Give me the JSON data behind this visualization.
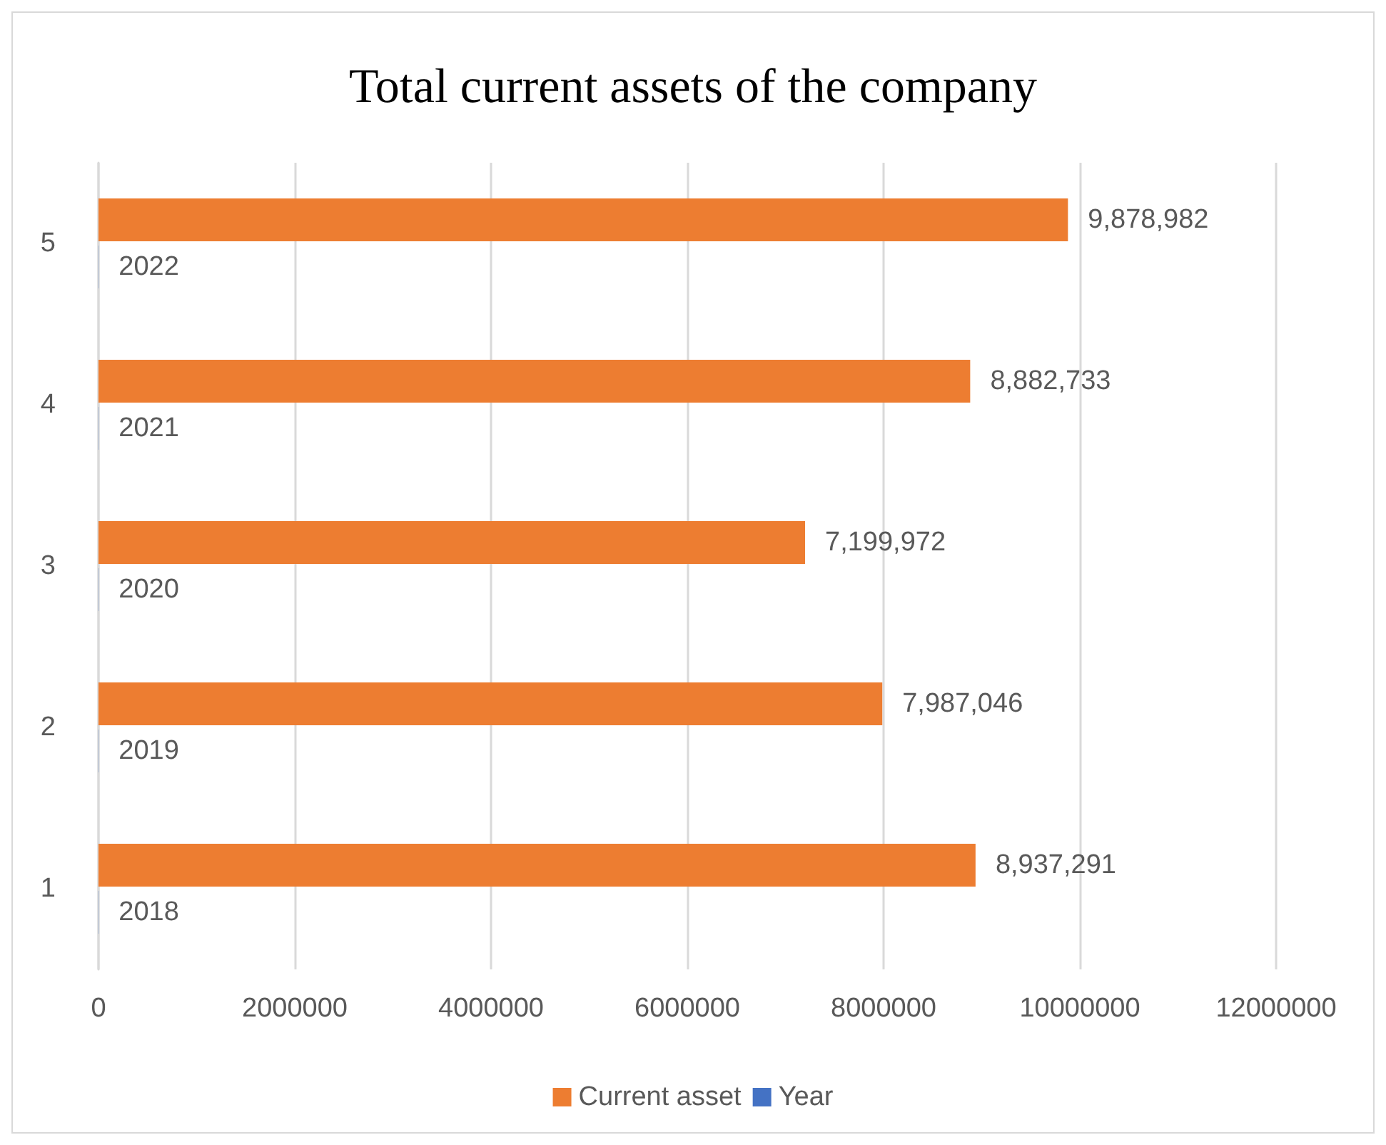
{
  "chart_data": {
    "type": "bar",
    "title": "Total current assets of the company",
    "orientation": "horizontal",
    "categories": [
      "5",
      "4",
      "3",
      "2",
      "1"
    ],
    "series": [
      {
        "name": "Current asset",
        "color": "#ed7d31",
        "values": [
          9878982,
          8882733,
          7199972,
          7987046,
          8937291
        ],
        "value_labels": [
          "9,878,982",
          "8,882,733",
          "7,199,972",
          "7,987,046",
          "8,937,291"
        ]
      },
      {
        "name": "Year",
        "color": "#4472c4",
        "values": [
          2022,
          2021,
          2020,
          2019,
          2018
        ],
        "value_labels": [
          "2022",
          "2021",
          "2020",
          "2019",
          "2018"
        ]
      }
    ],
    "xlim": [
      0,
      12000000
    ],
    "xticks": [
      0,
      2000000,
      4000000,
      6000000,
      8000000,
      10000000,
      12000000
    ],
    "grid": "x",
    "legend": "bottom"
  }
}
